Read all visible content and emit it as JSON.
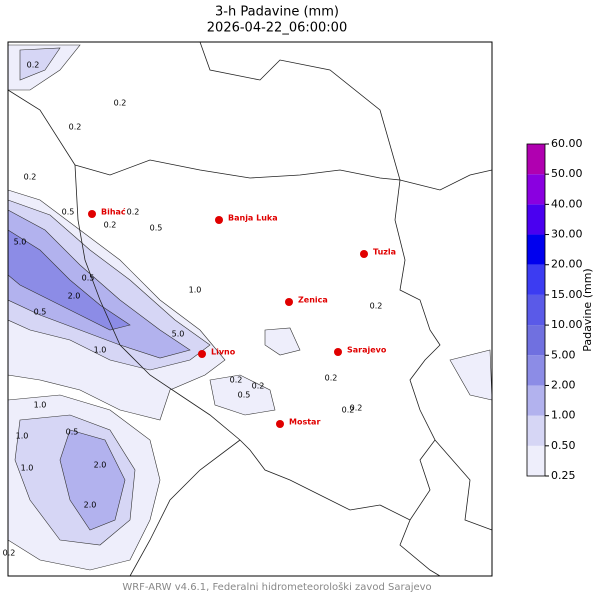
{
  "title": "3-h Padavine (mm)",
  "subtitle": "2026-04-22_06:00:00",
  "footer": "WRF-ARW v4.6.1, Federalni hidrometeorološki zavod Sarajevo",
  "cities": [
    "Bihać",
    "Banja Luka",
    "Tuzla",
    "Zenica",
    "Sarajevo",
    "Livno",
    "Mostar"
  ],
  "contour_labels": [
    "0.2",
    "0.2",
    "0.2",
    "0.2",
    "0.5",
    "0.2",
    "0.5",
    "5.0",
    "2.0",
    "0.5",
    "1.0",
    "1.0",
    "5.0",
    "1.0",
    "0.5",
    "0.2",
    "0.5",
    "0.2",
    "0.2",
    "0.5",
    "0.2",
    "0.2",
    "0.2",
    "0.2",
    "1.0",
    "2.0",
    "1.0",
    "2.0",
    "0.2"
  ],
  "colorbar": {
    "label": "Padavine (mm)",
    "levels": [
      {
        "value": 0.25,
        "label": "0.25"
      },
      {
        "value": 0.5,
        "label": "0.50"
      },
      {
        "value": 1,
        "label": "1.00"
      },
      {
        "value": 2,
        "label": "2.00"
      },
      {
        "value": 5,
        "label": "5.00"
      },
      {
        "value": 10,
        "label": "10.00"
      },
      {
        "value": 15,
        "label": "15.00"
      },
      {
        "value": 20,
        "label": "20.00"
      },
      {
        "value": 30,
        "label": "30.00"
      },
      {
        "value": 40,
        "label": "40.00"
      },
      {
        "value": 50,
        "label": "50.00"
      },
      {
        "value": 60,
        "label": "60.00"
      }
    ],
    "colors": [
      "#eeeefb",
      "#d6d6f5",
      "#b2b2ee",
      "#8c8ce6",
      "#7070e0",
      "#5a5ae8",
      "#3c3cf2",
      "#0000ee",
      "#4a00f0",
      "#8a00e0",
      "#b000b0"
    ]
  }
}
